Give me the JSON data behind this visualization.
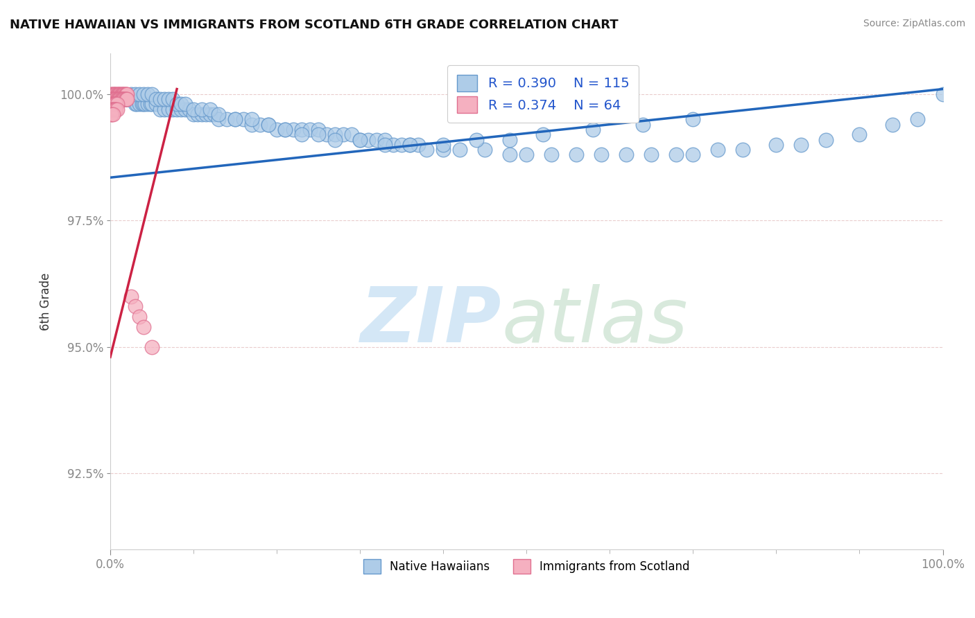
{
  "title": "NATIVE HAWAIIAN VS IMMIGRANTS FROM SCOTLAND 6TH GRADE CORRELATION CHART",
  "source": "Source: ZipAtlas.com",
  "ylabel": "6th Grade",
  "xlim": [
    0.0,
    1.0
  ],
  "ylim": [
    0.91,
    1.008
  ],
  "yticks": [
    0.925,
    0.95,
    0.975,
    1.0
  ],
  "ytick_labels": [
    "92.5%",
    "95.0%",
    "97.5%",
    "100.0%"
  ],
  "xtick_labels": [
    "0.0%",
    "100.0%"
  ],
  "legend_blue_label": "Native Hawaiians",
  "legend_pink_label": "Immigrants from Scotland",
  "r_blue": 0.39,
  "n_blue": 115,
  "r_pink": 0.374,
  "n_pink": 64,
  "blue_color": "#aecce8",
  "blue_edge": "#6699cc",
  "pink_color": "#f5b0c0",
  "pink_edge": "#e07090",
  "blue_line_color": "#2266bb",
  "pink_line_color": "#cc2244",
  "blue_line_x": [
    0.0,
    1.0
  ],
  "blue_line_y": [
    0.9835,
    1.001
  ],
  "pink_line_x": [
    0.0,
    0.08
  ],
  "pink_line_y": [
    0.948,
    1.001
  ],
  "blue_points_x": [
    0.005,
    0.008,
    0.01,
    0.012,
    0.015,
    0.018,
    0.02,
    0.022,
    0.025,
    0.028,
    0.03,
    0.032,
    0.035,
    0.038,
    0.04,
    0.042,
    0.045,
    0.048,
    0.05,
    0.055,
    0.06,
    0.065,
    0.07,
    0.075,
    0.08,
    0.085,
    0.09,
    0.095,
    0.1,
    0.105,
    0.11,
    0.115,
    0.12,
    0.125,
    0.13,
    0.14,
    0.15,
    0.16,
    0.17,
    0.18,
    0.19,
    0.2,
    0.21,
    0.22,
    0.23,
    0.24,
    0.25,
    0.26,
    0.27,
    0.28,
    0.29,
    0.3,
    0.31,
    0.32,
    0.33,
    0.34,
    0.35,
    0.36,
    0.37,
    0.38,
    0.4,
    0.42,
    0.45,
    0.48,
    0.5,
    0.53,
    0.56,
    0.59,
    0.62,
    0.65,
    0.68,
    0.7,
    0.73,
    0.76,
    0.8,
    0.83,
    0.86,
    0.9,
    0.94,
    0.97,
    0.025,
    0.03,
    0.035,
    0.04,
    0.045,
    0.05,
    0.055,
    0.06,
    0.065,
    0.07,
    0.075,
    0.08,
    0.085,
    0.09,
    0.1,
    0.11,
    0.12,
    0.13,
    0.15,
    0.17,
    0.19,
    0.21,
    0.23,
    0.25,
    0.27,
    0.3,
    0.33,
    0.36,
    0.4,
    0.44,
    0.48,
    0.52,
    0.58,
    0.64,
    0.7,
    1.0
  ],
  "blue_points_y": [
    0.999,
    0.999,
    0.999,
    0.999,
    0.999,
    0.999,
    0.999,
    0.999,
    0.999,
    0.999,
    0.998,
    0.998,
    0.998,
    0.998,
    0.998,
    0.998,
    0.998,
    0.998,
    0.998,
    0.998,
    0.997,
    0.997,
    0.997,
    0.997,
    0.997,
    0.997,
    0.997,
    0.997,
    0.996,
    0.996,
    0.996,
    0.996,
    0.996,
    0.996,
    0.995,
    0.995,
    0.995,
    0.995,
    0.994,
    0.994,
    0.994,
    0.993,
    0.993,
    0.993,
    0.993,
    0.993,
    0.993,
    0.992,
    0.992,
    0.992,
    0.992,
    0.991,
    0.991,
    0.991,
    0.991,
    0.99,
    0.99,
    0.99,
    0.99,
    0.989,
    0.989,
    0.989,
    0.989,
    0.988,
    0.988,
    0.988,
    0.988,
    0.988,
    0.988,
    0.988,
    0.988,
    0.988,
    0.989,
    0.989,
    0.99,
    0.99,
    0.991,
    0.992,
    0.994,
    0.995,
    1.0,
    1.0,
    1.0,
    1.0,
    1.0,
    1.0,
    0.999,
    0.999,
    0.999,
    0.999,
    0.999,
    0.998,
    0.998,
    0.998,
    0.997,
    0.997,
    0.997,
    0.996,
    0.995,
    0.995,
    0.994,
    0.993,
    0.992,
    0.992,
    0.991,
    0.991,
    0.99,
    0.99,
    0.99,
    0.991,
    0.991,
    0.992,
    0.993,
    0.994,
    0.995,
    1.0
  ],
  "pink_points_x": [
    0.001,
    0.002,
    0.003,
    0.004,
    0.005,
    0.006,
    0.007,
    0.008,
    0.009,
    0.01,
    0.011,
    0.012,
    0.013,
    0.014,
    0.015,
    0.016,
    0.017,
    0.018,
    0.019,
    0.02,
    0.001,
    0.002,
    0.003,
    0.004,
    0.005,
    0.006,
    0.007,
    0.008,
    0.009,
    0.01,
    0.011,
    0.012,
    0.013,
    0.014,
    0.015,
    0.016,
    0.017,
    0.018,
    0.019,
    0.02,
    0.001,
    0.002,
    0.003,
    0.004,
    0.005,
    0.006,
    0.007,
    0.008,
    0.001,
    0.002,
    0.003,
    0.004,
    0.005,
    0.006,
    0.007,
    0.008,
    0.001,
    0.002,
    0.003,
    0.025,
    0.03,
    0.035,
    0.04,
    0.05
  ],
  "pink_points_y": [
    1.0,
    1.0,
    1.0,
    1.0,
    1.0,
    1.0,
    1.0,
    1.0,
    1.0,
    1.0,
    1.0,
    1.0,
    1.0,
    1.0,
    1.0,
    1.0,
    1.0,
    1.0,
    1.0,
    1.0,
    0.999,
    0.999,
    0.999,
    0.999,
    0.999,
    0.999,
    0.999,
    0.999,
    0.999,
    0.999,
    0.999,
    0.999,
    0.999,
    0.999,
    0.999,
    0.999,
    0.999,
    0.999,
    0.999,
    0.999,
    0.998,
    0.998,
    0.998,
    0.998,
    0.998,
    0.998,
    0.998,
    0.998,
    0.997,
    0.997,
    0.997,
    0.997,
    0.997,
    0.997,
    0.997,
    0.997,
    0.996,
    0.996,
    0.996,
    0.96,
    0.958,
    0.956,
    0.954,
    0.95
  ]
}
